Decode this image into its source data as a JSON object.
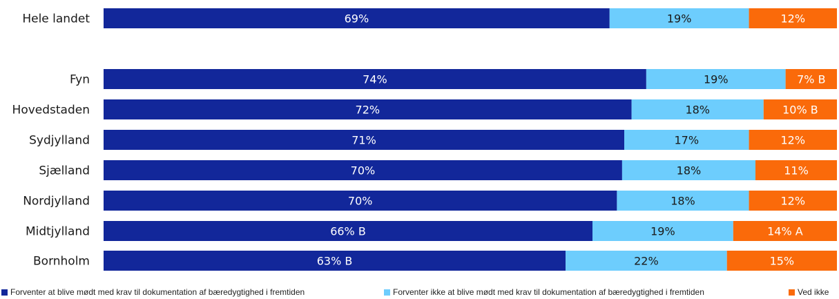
{
  "chart_data": {
    "type": "bar",
    "orientation": "horizontal",
    "stacked": true,
    "categories": [
      "Hele landet",
      "Fyn",
      "Hovedstaden",
      "Sydjylland",
      "Sjælland",
      "Nordjylland",
      "Midtjylland",
      "Bornholm"
    ],
    "series": [
      {
        "name": "Forventer at blive mødt med krav til dokumentation af bæredygtighed i fremtiden",
        "color": "#12279A",
        "label_color": "#ffffff",
        "values": [
          69,
          74,
          72,
          71,
          70,
          70,
          66,
          63
        ],
        "labels": [
          "69%",
          "74%",
          "72%",
          "71%",
          "70%",
          "70%",
          "66% B",
          "63% B"
        ]
      },
      {
        "name": "Forventer ikke at blive mødt med krav til dokumentation af bæredygtighed i fremtiden",
        "color": "#6DCDFD",
        "label_color": "#1a1a1a",
        "values": [
          19,
          19,
          18,
          17,
          18,
          18,
          19,
          22
        ],
        "labels": [
          "19%",
          "19%",
          "18%",
          "17%",
          "18%",
          "18%",
          "19%",
          "22%"
        ]
      },
      {
        "name": "Ved ikke",
        "color": "#FA6A0A",
        "label_color": "#ffffff",
        "values": [
          12,
          7,
          10,
          12,
          11,
          12,
          14,
          15
        ],
        "labels": [
          "12%",
          "7% B",
          "10% B",
          "12%",
          "11%",
          "12%",
          "14% A",
          "15%"
        ]
      }
    ],
    "xlim": [
      0,
      100
    ],
    "grid": false,
    "legend_position": "bottom"
  }
}
